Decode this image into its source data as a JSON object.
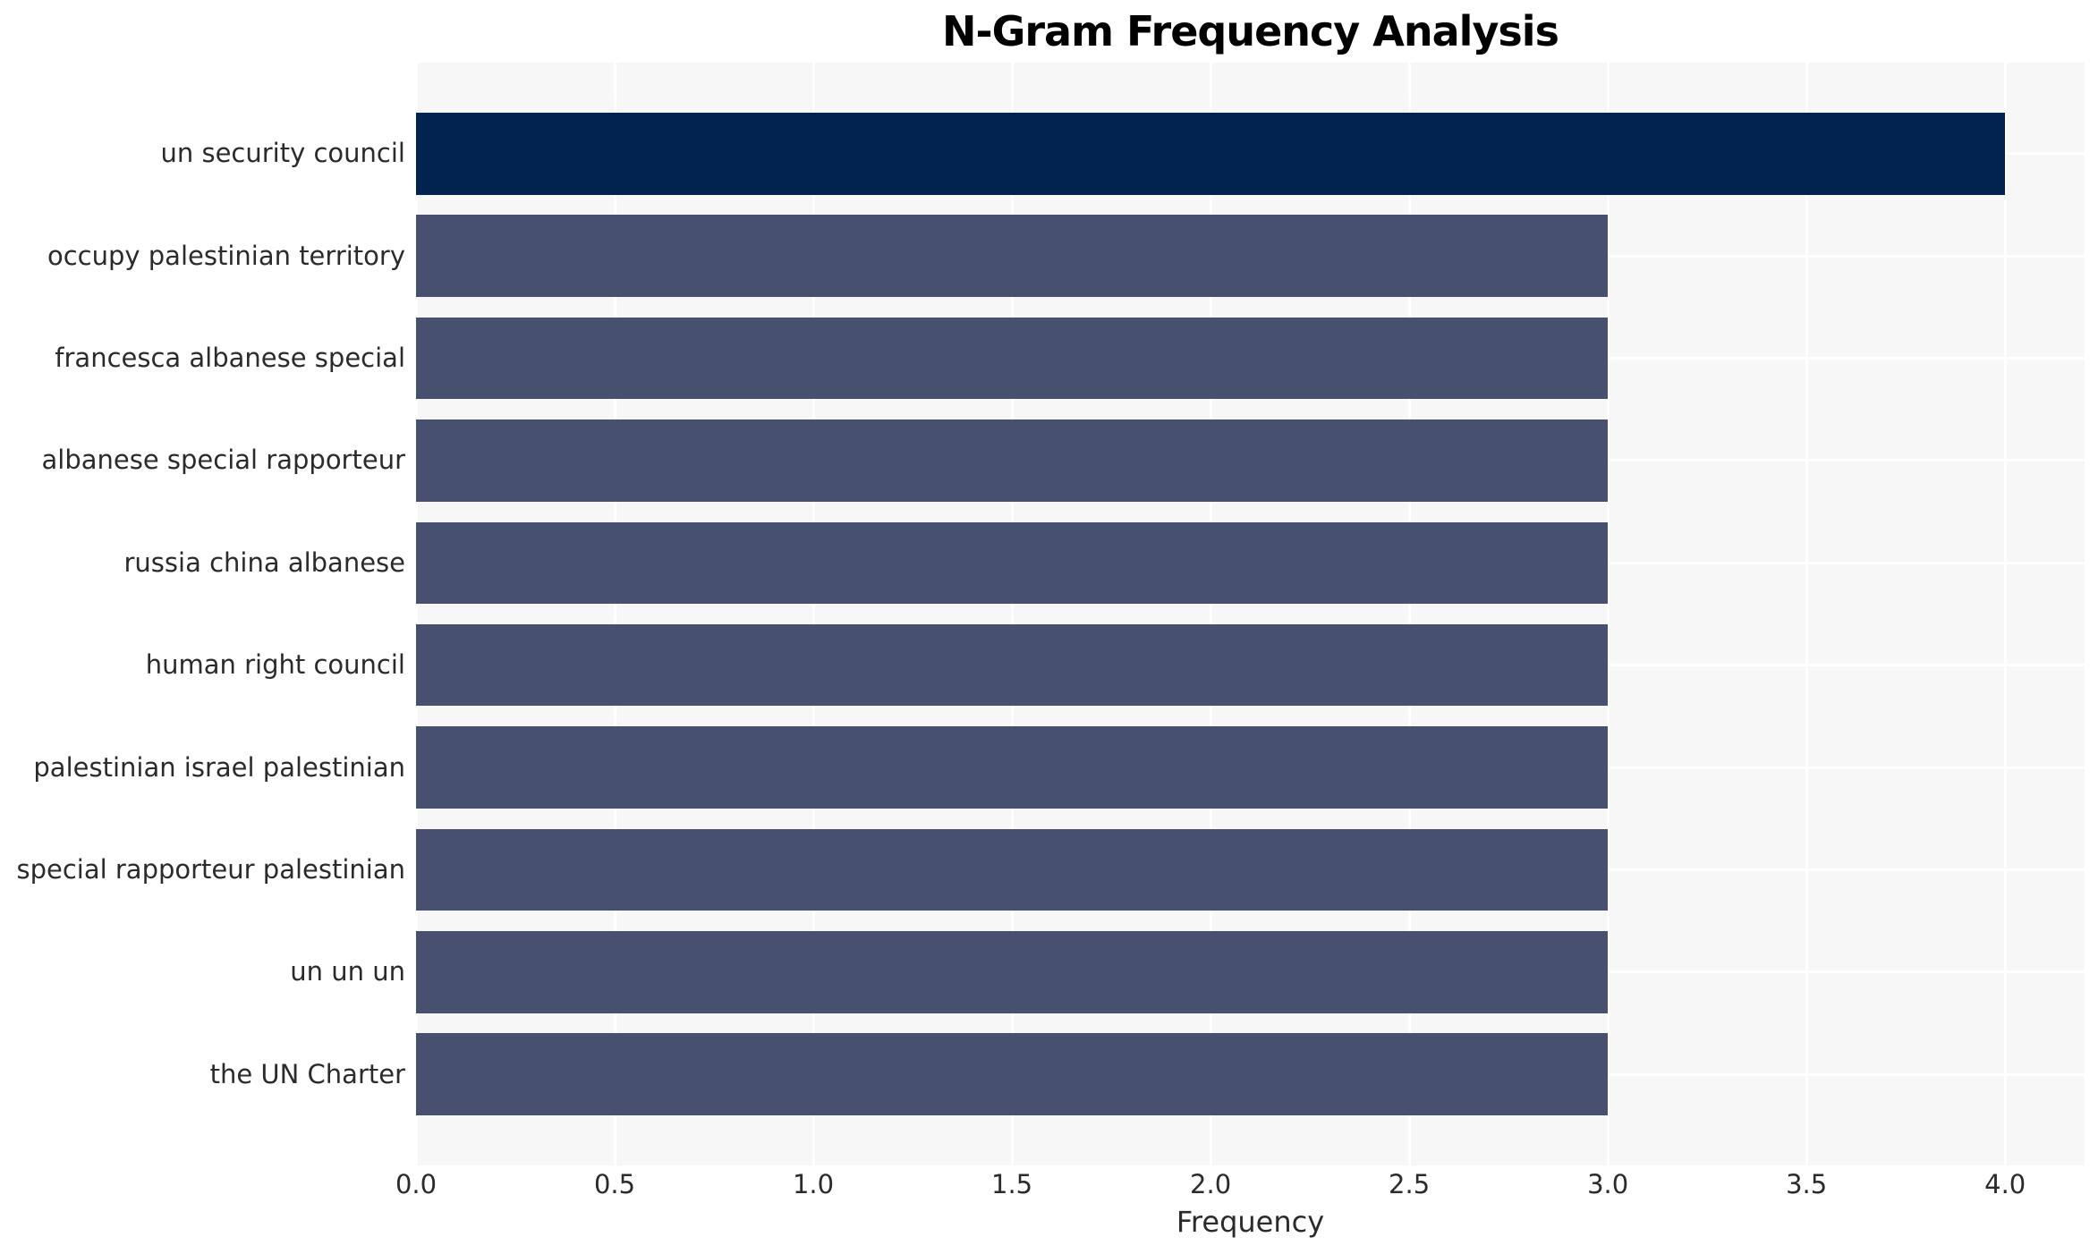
{
  "chart_data": {
    "type": "bar",
    "orientation": "horizontal",
    "title": "N-Gram Frequency Analysis",
    "xlabel": "Frequency",
    "ylabel": "",
    "categories": [
      "un security council",
      "occupy palestinian territory",
      "francesca albanese special",
      "albanese special rapporteur",
      "russia china albanese",
      "human right council",
      "palestinian israel palestinian",
      "special rapporteur palestinian",
      "un un un",
      "the UN Charter"
    ],
    "values": [
      4,
      3,
      3,
      3,
      3,
      3,
      3,
      3,
      3,
      3
    ],
    "bar_colors": [
      "#02234F",
      "#47516F",
      "#47516F",
      "#47516F",
      "#47516F",
      "#47516F",
      "#47516F",
      "#47516F",
      "#47516F",
      "#47516F"
    ],
    "xlim": [
      0,
      4.2
    ],
    "xticks": [
      0.0,
      0.5,
      1.0,
      1.5,
      2.0,
      2.5,
      3.0,
      3.5,
      4.0
    ],
    "xtick_labels": [
      "0.0",
      "0.5",
      "1.0",
      "1.5",
      "2.0",
      "2.5",
      "3.0",
      "3.5",
      "4.0"
    ],
    "grid": true,
    "legend": null,
    "colors": {
      "plot_background": "#F7F7F7",
      "figure_background": "#FFFFFF",
      "gridline": "#FFFFFF",
      "text": "#2B2B2B",
      "bar_highlight": "#02234F",
      "bar_default": "#47516F"
    }
  }
}
